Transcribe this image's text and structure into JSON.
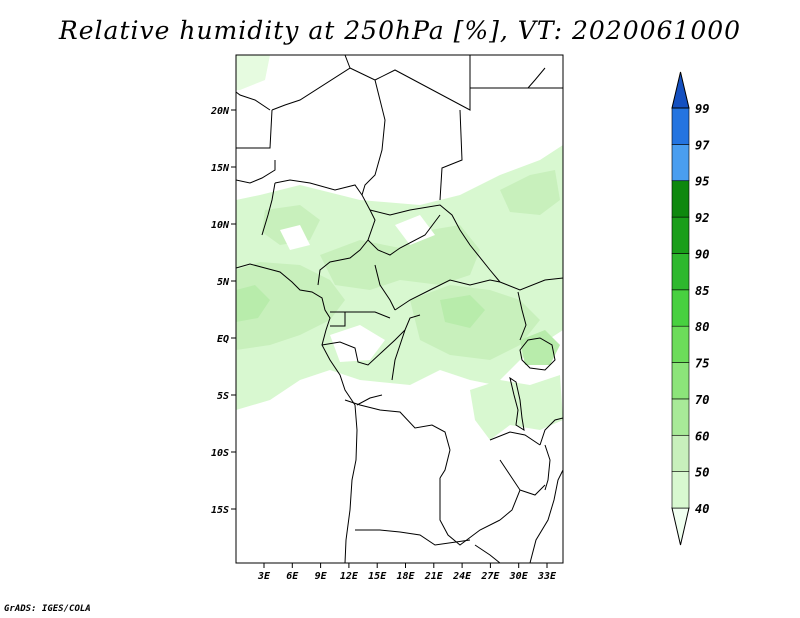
{
  "title": "Relative humidity at 250hPa [%], VT: 2020061000",
  "credit": "GrADS: IGES/COLA",
  "map": {
    "lat_labels": [
      "20N",
      "15N",
      "10N",
      "5N",
      "EQ",
      "5S",
      "10S",
      "15S"
    ],
    "lon_labels": [
      "3E",
      "6E",
      "9E",
      "12E",
      "15E",
      "18E",
      "21E",
      "24E",
      "27E",
      "30E",
      "33E"
    ]
  },
  "colorbar": {
    "levels": [
      "40",
      "50",
      "60",
      "70",
      "75",
      "80",
      "85",
      "90",
      "92",
      "95",
      "97",
      "99"
    ],
    "colors": [
      "#f0fff0",
      "#d8f8d0",
      "#c8f0bc",
      "#a8ea98",
      "#8ce47a",
      "#6cdc5a",
      "#48d040",
      "#2eb82e",
      "#1a9e1a",
      "#0e880e",
      "#4a9ef0",
      "#2474e0",
      "#1450c0"
    ]
  }
}
